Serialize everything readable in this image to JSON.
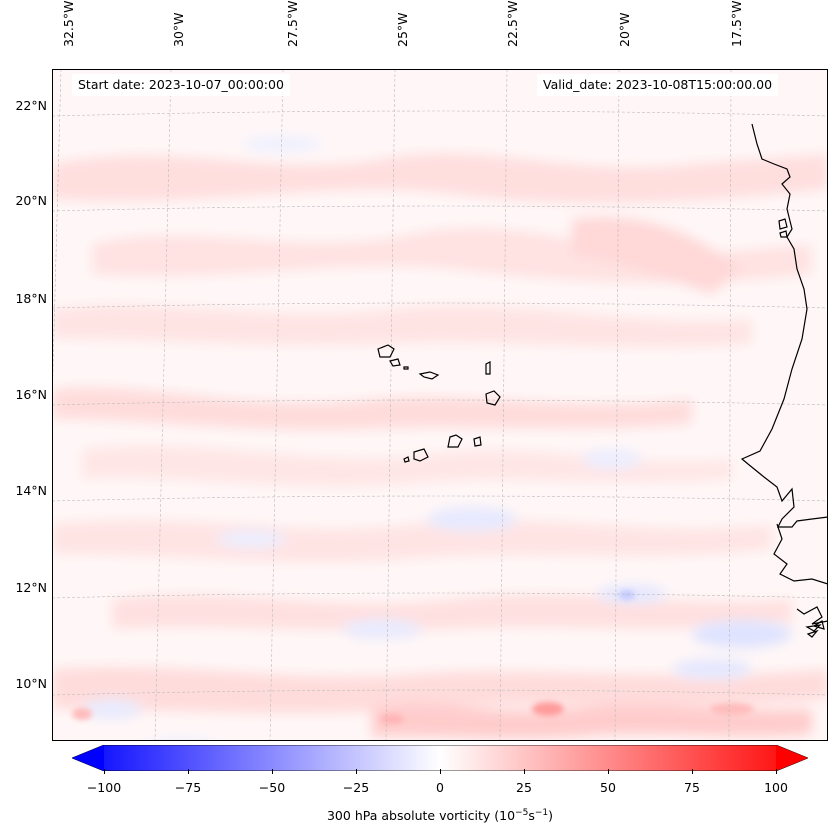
{
  "map": {
    "start_date": "Start date: 2023-10-07_00:00:00",
    "valid_date": "Valid_date: 2023-10-08T15:00:00.00",
    "lon_labels": [
      "32.5°W",
      "30°W",
      "27.5°W",
      "25°W",
      "22.5°W",
      "20°W",
      "17.5°W"
    ],
    "lat_labels": [
      "22°N",
      "20°N",
      "18°N",
      "16°N",
      "14°N",
      "12°N",
      "10°N"
    ],
    "field": "300 hPa absolute vorticity",
    "projection_grid": "dashed graticule"
  },
  "colorbar": {
    "label_prefix": "300 hPa absolute vorticity (10",
    "label_exp1": "−5",
    "label_mid": "s",
    "label_exp2": "−1",
    "label_suffix": ")",
    "ticks": [
      "−100",
      "−75",
      "−50",
      "−25",
      "0",
      "25",
      "50",
      "75",
      "100"
    ],
    "min": -100,
    "max": 100,
    "colormap": "bwr",
    "low_color": "#0000ff",
    "mid_color": "#ffffff",
    "high_color": "#ff0000"
  }
}
